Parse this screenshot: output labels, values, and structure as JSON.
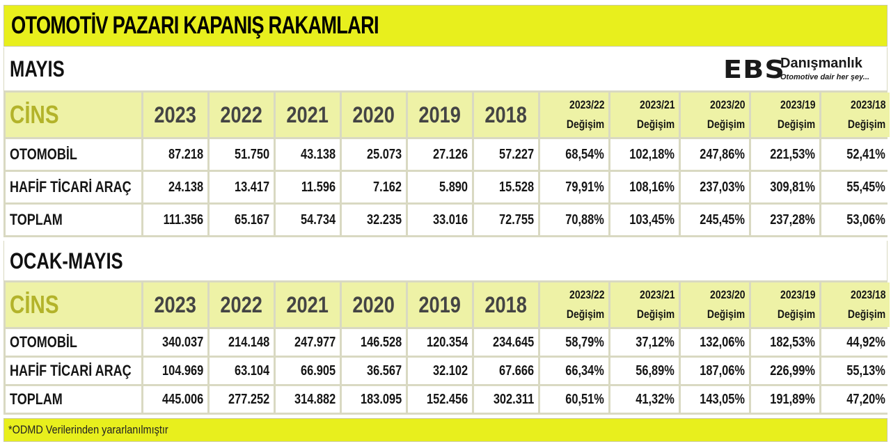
{
  "title": "OTOMOTİV PAZARI KAPANIŞ RAKAMLARI",
  "logo": {
    "brand": "EBS",
    "name": "Danışmanlık",
    "tagline": "Otomotive dair her şey..."
  },
  "header": {
    "type_label": "CİNS",
    "years": [
      "2023",
      "2022",
      "2021",
      "2020",
      "2019",
      "2018"
    ],
    "changes": [
      {
        "period": "2023/22",
        "label": "Değişim"
      },
      {
        "period": "2023/21",
        "label": "Değişim"
      },
      {
        "period": "2023/20",
        "label": "Değişim"
      },
      {
        "period": "2023/19",
        "label": "Değişim"
      },
      {
        "period": "2023/18",
        "label": "Değişim"
      }
    ]
  },
  "sections": [
    {
      "label": "MAYIS",
      "rows": [
        {
          "name": "OTOMOBİL",
          "values": [
            "87.218",
            "51.750",
            "43.138",
            "25.073",
            "27.126",
            "57.227"
          ],
          "changes": [
            "68,54%",
            "102,18%",
            "247,86%",
            "221,53%",
            "52,41%"
          ]
        },
        {
          "name": "HAFİF TİCARİ ARAÇ",
          "values": [
            "24.138",
            "13.417",
            "11.596",
            "7.162",
            "5.890",
            "15.528"
          ],
          "changes": [
            "79,91%",
            "108,16%",
            "237,03%",
            "309,81%",
            "55,45%"
          ]
        },
        {
          "name": "TOPLAM",
          "values": [
            "111.356",
            "65.167",
            "54.734",
            "32.235",
            "33.016",
            "72.755"
          ],
          "changes": [
            "70,88%",
            "103,45%",
            "245,45%",
            "237,28%",
            "53,06%"
          ]
        }
      ]
    },
    {
      "label": "OCAK-MAYIS",
      "rows": [
        {
          "name": "OTOMOBİL",
          "values": [
            "340.037",
            "214.148",
            "247.977",
            "146.528",
            "120.354",
            "234.645"
          ],
          "changes": [
            "58,79%",
            "37,12%",
            "132,06%",
            "182,53%",
            "44,92%"
          ]
        },
        {
          "name": "HAFİF TİCARİ ARAÇ",
          "values": [
            "104.969",
            "63.104",
            "66.905",
            "36.567",
            "32.102",
            "67.666"
          ],
          "changes": [
            "66,34%",
            "56,89%",
            "187,06%",
            "226,99%",
            "55,13%"
          ]
        },
        {
          "name": "TOPLAM",
          "values": [
            "445.006",
            "277.252",
            "314.882",
            "183.095",
            "152.456",
            "302.311"
          ],
          "changes": [
            "60,51%",
            "41,32%",
            "143,05%",
            "191,89%",
            "47,20%"
          ]
        }
      ]
    }
  ],
  "footnote": "*ODMD Verilerinden yararlanılmıştır",
  "colors": {
    "accent": "#e8ef1d",
    "header_fill": "#eef2a6",
    "cins_text": "#b3b32a",
    "grid": "#d9d9c2"
  }
}
